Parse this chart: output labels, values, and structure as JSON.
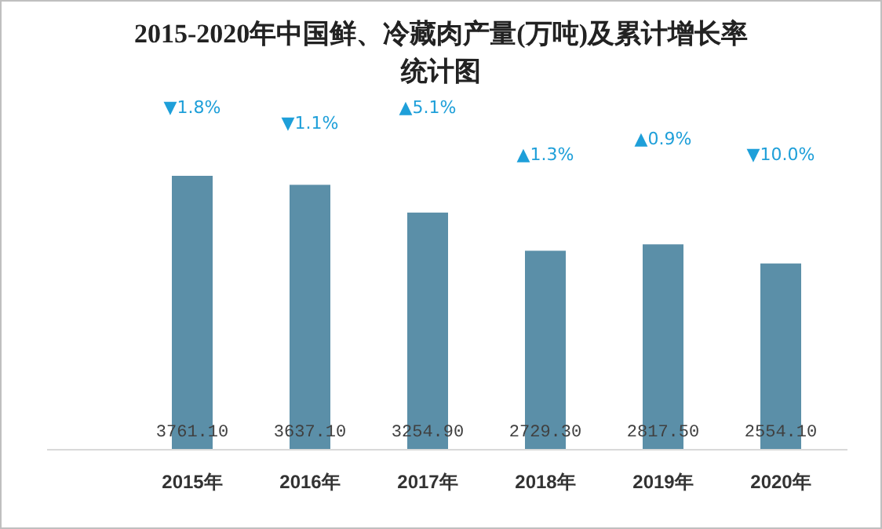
{
  "chart_data": {
    "type": "bar",
    "title": "2015-2020年中国鲜、冷藏肉产量(万吨)及累计增长率统计图",
    "categories": [
      "2015年",
      "2016年",
      "2017年",
      "2018年",
      "2019年",
      "2020年"
    ],
    "tick_labels": "x",
    "series": [
      {
        "type": "bar",
        "color": "#5b8fa8",
        "values": [
          3761.1,
          3637.1,
          3254.9,
          2729.3,
          2817.5,
          2554.1
        ],
        "value_labels": [
          "3761.10",
          "3637.10",
          "3254.90",
          "2729.30",
          "2817.50",
          "2554.10"
        ]
      }
    ],
    "annotations": [
      "▼1.8%",
      "▼1.1%",
      "▲5.1%",
      "▲1.3%",
      "▲0.9%",
      "▼10.0%"
    ]
  }
}
